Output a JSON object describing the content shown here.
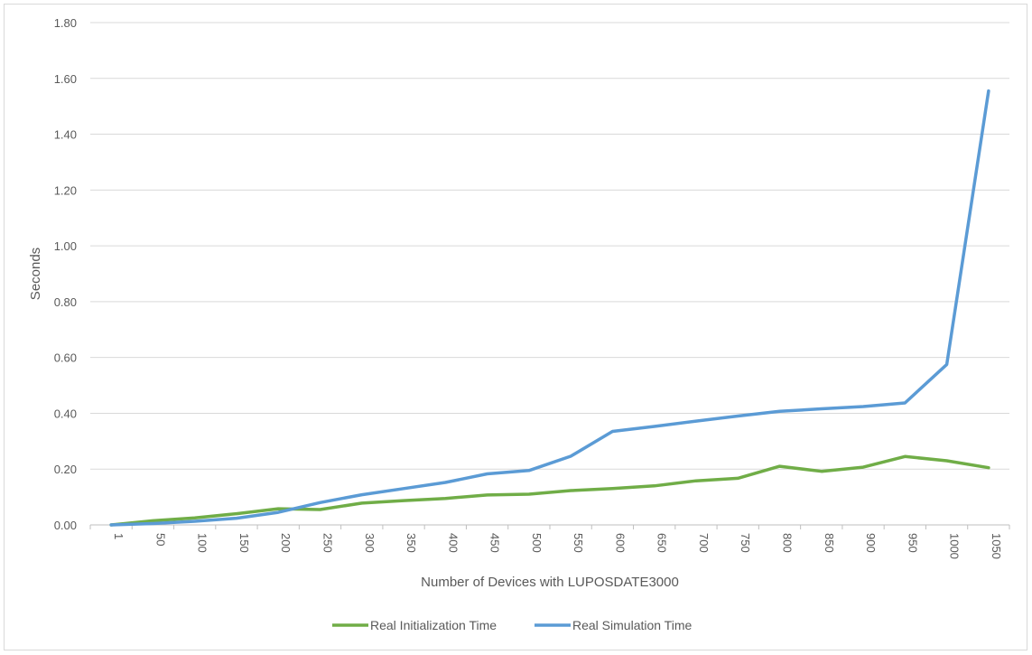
{
  "chart_data": {
    "type": "line",
    "title": "",
    "xlabel": "Number of Devices with LUPOSDATE3000",
    "ylabel": "Seconds",
    "ylim": [
      0,
      1.8
    ],
    "yticks": [
      "0.00",
      "0.20",
      "0.40",
      "0.60",
      "0.80",
      "1.00",
      "1.20",
      "1.40",
      "1.60",
      "1.80"
    ],
    "grid": true,
    "legend_position": "bottom",
    "categories": [
      "1",
      "50",
      "100",
      "150",
      "200",
      "250",
      "300",
      "350",
      "400",
      "450",
      "500",
      "550",
      "600",
      "650",
      "700",
      "750",
      "800",
      "850",
      "900",
      "950",
      "1000",
      "1050"
    ],
    "series": [
      {
        "name": "Real Initialization Time",
        "color": "#70ad47",
        "values": [
          0.0,
          0.015,
          0.025,
          0.04,
          0.058,
          0.055,
          0.078,
          0.087,
          0.095,
          0.107,
          0.11,
          0.123,
          0.13,
          0.14,
          0.158,
          0.167,
          0.21,
          0.192,
          0.207,
          0.245,
          0.23,
          0.205
        ]
      },
      {
        "name": "Real Simulation Time",
        "color": "#5b9bd5",
        "values": [
          0.0,
          0.005,
          0.013,
          0.024,
          0.045,
          0.08,
          0.108,
          0.13,
          0.152,
          0.183,
          0.195,
          0.246,
          0.335,
          0.353,
          0.372,
          0.39,
          0.407,
          0.416,
          0.424,
          0.437,
          0.575,
          1.555
        ]
      }
    ]
  }
}
